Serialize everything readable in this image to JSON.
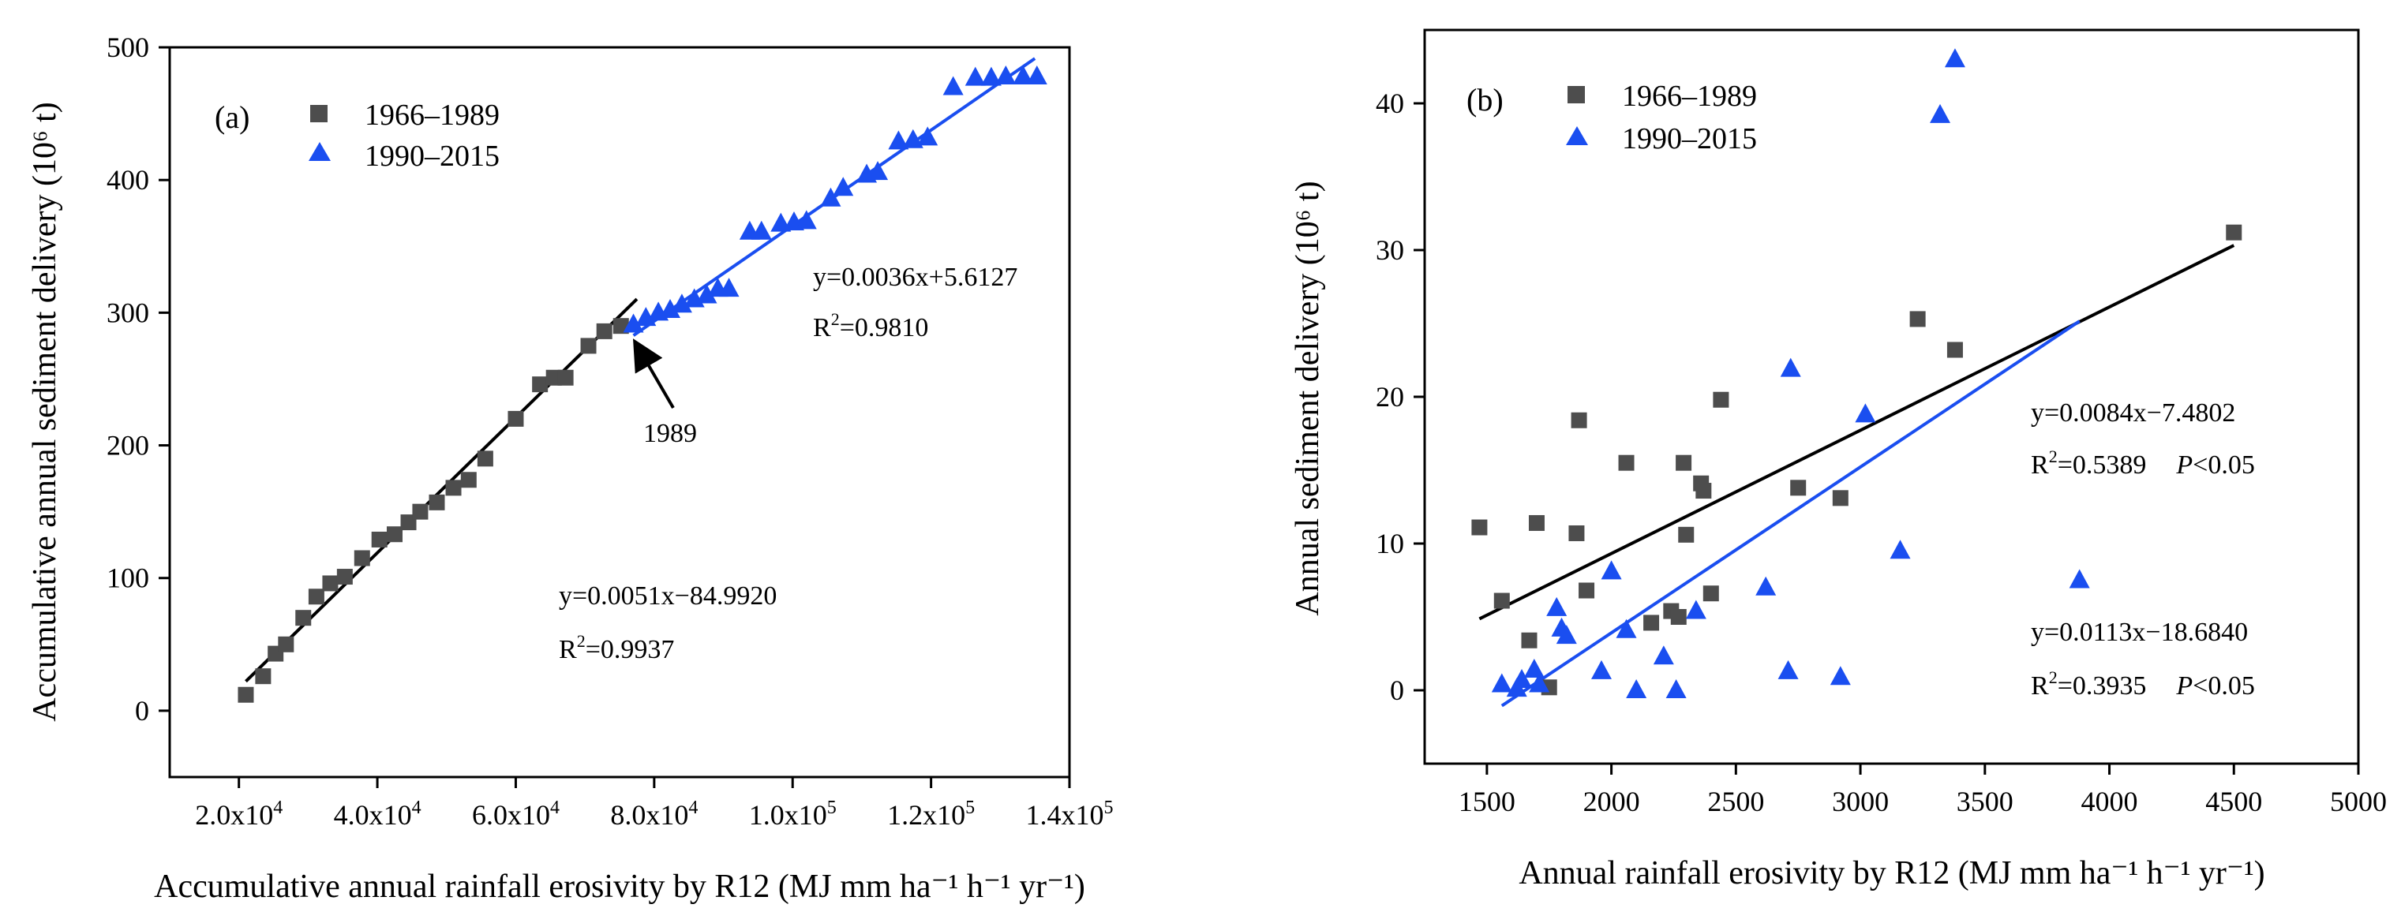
{
  "chart_data": [
    {
      "type": "scatter",
      "panel_label": "(a)",
      "xlabel": "Accumulative annual rainfall erosivity by R12 (MJ mm ha⁻¹ h⁻¹ yr⁻¹)",
      "ylabel": "Accumulative annual sediment delivery (10⁶ t)",
      "xlim": [
        10000,
        140000
      ],
      "ylim": [
        -50,
        500
      ],
      "xticks": [
        20000,
        40000,
        60000,
        80000,
        100000,
        120000,
        140000
      ],
      "xtick_labels": [
        "2.0x10⁴",
        "4.0x10⁴",
        "6.0x10⁴",
        "8.0x10⁴",
        "1.0x10⁵",
        "1.2x10⁵",
        "1.4x10⁵"
      ],
      "yticks": [
        0,
        100,
        200,
        300,
        400,
        500
      ],
      "ytick_labels": [
        "0",
        "100",
        "200",
        "300",
        "400",
        "500"
      ],
      "series": [
        {
          "name": "1966–1989",
          "marker": "square",
          "color": "#4d4d4d",
          "x": [
            21000,
            23500,
            25300,
            26800,
            29300,
            31200,
            33200,
            35300,
            37800,
            40300,
            42500,
            44500,
            46200,
            48600,
            51000,
            53200,
            55600,
            60000,
            63500,
            65500,
            67200,
            70500,
            72800,
            75200
          ],
          "y": [
            12,
            26,
            43,
            50,
            70,
            86,
            96,
            101,
            115,
            129,
            133,
            142,
            150,
            157,
            168,
            174,
            190,
            220,
            246,
            251,
            251,
            275,
            286,
            290
          ]
        },
        {
          "name": "1990–2015",
          "marker": "triangle",
          "color": "#1a4ef0",
          "x": [
            77000,
            78800,
            80600,
            82300,
            84000,
            85800,
            87600,
            89200,
            90800,
            93800,
            95500,
            98300,
            100200,
            102000,
            105500,
            107300,
            110700,
            112300,
            115300,
            117400,
            119500,
            123200,
            126400,
            128700,
            130800,
            133300,
            135300
          ],
          "y": [
            291,
            296,
            300,
            302,
            306,
            310,
            313,
            318,
            318,
            361,
            361,
            367,
            368,
            369,
            386,
            394,
            404,
            406,
            429,
            430,
            432,
            470,
            477,
            477,
            478,
            478,
            478
          ]
        }
      ],
      "fit_lines": [
        {
          "name": "fit-1966-1989",
          "color": "#000000",
          "slope": 0.0051,
          "intercept": -84.992,
          "x_range": [
            21000,
            77500
          ]
        },
        {
          "name": "fit-1990-2015",
          "color": "#1a4ef0",
          "slope": 0.0036,
          "intercept": 5.6127,
          "x_range": [
            77000,
            135000
          ]
        }
      ],
      "annotations": [
        {
          "equation": "y=0.0036x+5.6127",
          "r2_label": "R",
          "r2_sup": "2",
          "r2_value": "=0.9810"
        },
        {
          "equation": "y=0.0051x−84.9920",
          "r2_label": "R",
          "r2_sup": "2",
          "r2_value": "=0.9937"
        }
      ],
      "arrow_label": "1989"
    },
    {
      "type": "scatter",
      "panel_label": "(b)",
      "xlabel": "Annual rainfall erosivity by R12 (MJ mm ha⁻¹ h⁻¹ yr⁻¹)",
      "ylabel": "Annual  sediment delivery (10⁶ t)",
      "xlim": [
        1250,
        5000
      ],
      "ylim": [
        -5,
        45
      ],
      "xticks": [
        1500,
        2000,
        2500,
        3000,
        3500,
        4000,
        4500,
        5000
      ],
      "xtick_labels": [
        "1500",
        "2000",
        "2500",
        "3000",
        "3500",
        "4000",
        "4500",
        "5000"
      ],
      "yticks": [
        0,
        10,
        20,
        30,
        40
      ],
      "ytick_labels": [
        "0",
        "10",
        "20",
        "30",
        "40"
      ],
      "series": [
        {
          "name": "1966–1989",
          "marker": "square",
          "color": "#4d4d4d",
          "x": [
            1470,
            1560,
            1670,
            1700,
            1750,
            1860,
            1870,
            1900,
            2060,
            2160,
            2240,
            2270,
            2290,
            2300,
            2360,
            2370,
            2400,
            2440,
            2750,
            2920,
            3230,
            3380,
            4500
          ],
          "y": [
            11.1,
            6.1,
            3.4,
            11.4,
            0.2,
            10.7,
            18.4,
            6.8,
            15.5,
            4.6,
            5.4,
            5.0,
            15.5,
            10.6,
            14.1,
            13.6,
            6.6,
            19.8,
            13.8,
            13.1,
            25.3,
            23.2,
            31.2
          ]
        },
        {
          "name": "1990–2015",
          "marker": "triangle",
          "color": "#1a4ef0",
          "x": [
            1560,
            1620,
            1640,
            1690,
            1710,
            1780,
            1800,
            1820,
            1960,
            2000,
            2060,
            2100,
            2210,
            2260,
            2340,
            2620,
            2710,
            2720,
            2920,
            3020,
            3160,
            3320,
            3380,
            3880
          ],
          "y": [
            0.4,
            0.1,
            0.7,
            1.4,
            0.4,
            5.6,
            4.2,
            3.7,
            1.3,
            8.1,
            4.1,
            0.0,
            2.3,
            0.0,
            5.4,
            7.0,
            1.3,
            21.9,
            0.9,
            18.8,
            9.5,
            39.2,
            43.0,
            7.5
          ]
        }
      ],
      "fit_lines": [
        {
          "name": "fit-1966-1989",
          "color": "#000000",
          "slope": 0.0084,
          "intercept": -7.4802,
          "x_range": [
            1470,
            4500
          ]
        },
        {
          "name": "fit-1990-2015",
          "color": "#1a4ef0",
          "slope": 0.0113,
          "intercept": -18.684,
          "x_range": [
            1560,
            3880
          ]
        }
      ],
      "annotations": [
        {
          "equation": "y=0.0084x−7.4802",
          "r2_label": "R",
          "r2_sup": "2",
          "r2_value": "=0.5389",
          "p_label": "P",
          "p_value": "<0.05"
        },
        {
          "equation": "y=0.0113x−18.6840",
          "r2_label": "R",
          "r2_sup": "2",
          "r2_value": "=0.3935",
          "p_label": "P",
          "p_value": "<0.05"
        }
      ]
    }
  ]
}
